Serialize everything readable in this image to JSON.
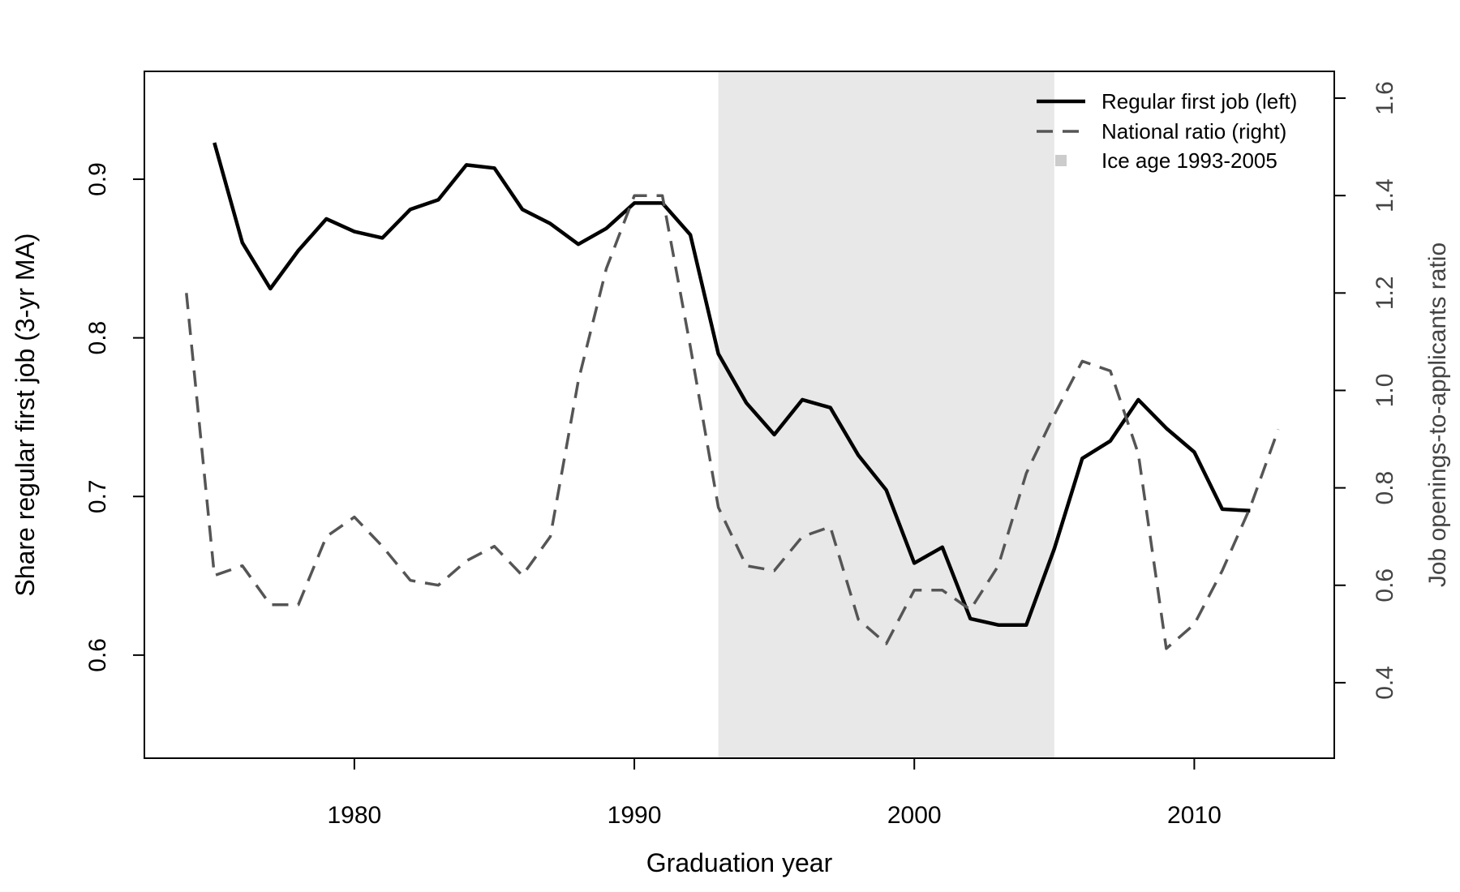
{
  "chart_data": {
    "type": "line",
    "title": "",
    "xlabel": "Graduation year",
    "ylabel_left": "Share regular first job (3-yr MA)",
    "ylabel_right": "Job openings-to-applicants ratio",
    "xlim": [
      1972.5,
      2015
    ],
    "ylim_left": [
      0.535,
      0.968
    ],
    "ylim_right": [
      0.245,
      1.655
    ],
    "x_ticks": [
      1980,
      1990,
      2000,
      2010
    ],
    "y_ticks_left": [
      0.6,
      0.7,
      0.8,
      0.9
    ],
    "y_ticks_right": [
      0.4,
      0.6,
      0.8,
      1.0,
      1.2,
      1.4,
      1.6
    ],
    "grid": false,
    "legend_position": "top-right",
    "shaded_region": {
      "x0": 1993,
      "x1": 2005,
      "color": "#e8e8e8",
      "label": "Ice age 1993-2005"
    },
    "series": [
      {
        "name": "Regular first job (left)",
        "axis": "left",
        "color": "#000000",
        "style": "solid",
        "x": [
          1975,
          1976,
          1977,
          1978,
          1979,
          1980,
          1981,
          1982,
          1983,
          1984,
          1985,
          1986,
          1987,
          1988,
          1989,
          1990,
          1991,
          1992,
          1993,
          1994,
          1995,
          1996,
          1997,
          1998,
          1999,
          2000,
          2001,
          2002,
          2003,
          2004,
          2005,
          2006,
          2007,
          2008,
          2009,
          2010,
          2011,
          2012
        ],
        "values": [
          0.923,
          0.86,
          0.831,
          0.855,
          0.875,
          0.867,
          0.863,
          0.881,
          0.887,
          0.909,
          0.907,
          0.881,
          0.872,
          0.859,
          0.869,
          0.885,
          0.885,
          0.865,
          0.79,
          0.759,
          0.739,
          0.761,
          0.756,
          0.726,
          0.704,
          0.658,
          0.668,
          0.623,
          0.619,
          0.619,
          0.667,
          0.724,
          0.735,
          0.761,
          0.743,
          0.728,
          0.692,
          0.691
        ]
      },
      {
        "name": "National ratio (right)",
        "axis": "right",
        "color": "#555555",
        "style": "dashed",
        "x": [
          1974,
          1975,
          1976,
          1977,
          1978,
          1979,
          1980,
          1981,
          1982,
          1983,
          1984,
          1985,
          1986,
          1987,
          1988,
          1989,
          1990,
          1991,
          1992,
          1993,
          1994,
          1995,
          1996,
          1997,
          1998,
          1999,
          2000,
          2001,
          2002,
          2003,
          2004,
          2005,
          2006,
          2007,
          2008,
          2009,
          2010,
          2011,
          2012,
          2013
        ],
        "values": [
          1.2,
          0.62,
          0.64,
          0.56,
          0.56,
          0.7,
          0.74,
          0.68,
          0.61,
          0.6,
          0.65,
          0.68,
          0.62,
          0.7,
          1.02,
          1.25,
          1.4,
          1.4,
          1.09,
          0.76,
          0.64,
          0.63,
          0.7,
          0.72,
          0.53,
          0.48,
          0.59,
          0.59,
          0.55,
          0.64,
          0.83,
          0.95,
          1.06,
          1.04,
          0.87,
          0.47,
          0.52,
          0.63,
          0.76,
          0.92
        ]
      }
    ],
    "legend": [
      {
        "label": "Regular first job (left)",
        "style": "solid",
        "color": "#000000"
      },
      {
        "label": "National ratio (right)",
        "style": "dashed",
        "color": "#555555"
      },
      {
        "label": "Ice age 1993-2005",
        "style": "box",
        "color": "#cccccc"
      }
    ]
  }
}
